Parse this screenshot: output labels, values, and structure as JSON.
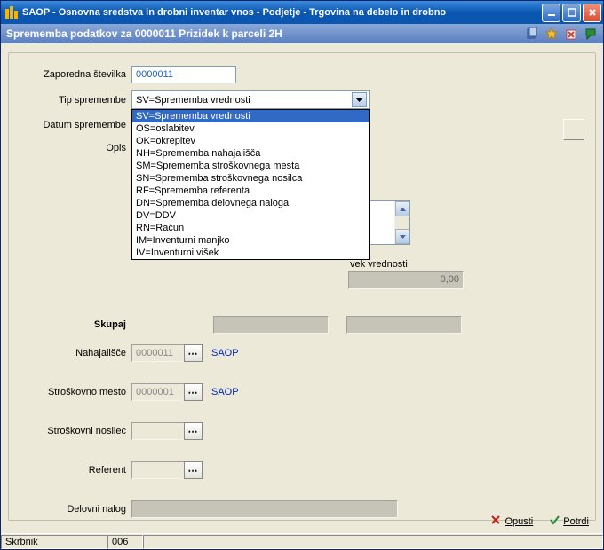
{
  "window": {
    "title": "SAOP   -  Osnovna sredstva in drobni inventar vnos  -  Podjetje  -  Trgovina na debelo in drobno"
  },
  "subheader": {
    "text": "Sprememba podatkov za 0000011 Prizidek k parceli 2H"
  },
  "labels": {
    "zaporedna": "Zaporedna številka",
    "tip": "Tip spremembe",
    "datum": "Datum spremembe",
    "opis": "Opis",
    "skupaj": "Skupaj",
    "nahajalisce": "Nahajališče",
    "stroskMesto": "Stroškovno mesto",
    "stroskNosilec": "Stroškovni nosilec",
    "referent": "Referent",
    "delovniNalog": "Delovni nalog",
    "popravek": "vek vrednosti"
  },
  "values": {
    "zaporedna": "0000011",
    "tipSelected": "SV=Sprememba vrednosti",
    "nahajalisce": "0000011",
    "nahajalisceText": "SAOP",
    "stroskMesto": "0000001",
    "stroskMestoText": "SAOP",
    "popravekVal": "0,00",
    "statusUser": "Skrbnik",
    "statusCode": "006"
  },
  "dropdown": {
    "items": [
      "SV=Sprememba vrednosti",
      "OS=oslabitev",
      "OK=okrepitev",
      "NH=Sprememba nahajališča",
      "SM=Sprememba stroškovnega mesta",
      "SN=Sprememba stroškovnega nosilca",
      "RF=Sprememba referenta",
      "DN=Sprememba delovnega naloga",
      "DV=DDV",
      "RN=Račun",
      "IM=Inventurni manjko",
      "IV=Inventurni višek"
    ]
  },
  "actions": {
    "opusti": "Opusti",
    "potrdi": "Potrdi"
  },
  "colors": {
    "titlebar_grad_top": "#3c8cde",
    "titlebar_grad_bot": "#0a56b0",
    "subheader_grad_top": "#8aa7d6",
    "subheader_grad_bot": "#5a7fbf",
    "form_bg": "#ece9d8",
    "selection": "#316ac5",
    "link": "#0020c0",
    "input_border": "#7f9db9",
    "grey_box": "#c6c4b7"
  }
}
